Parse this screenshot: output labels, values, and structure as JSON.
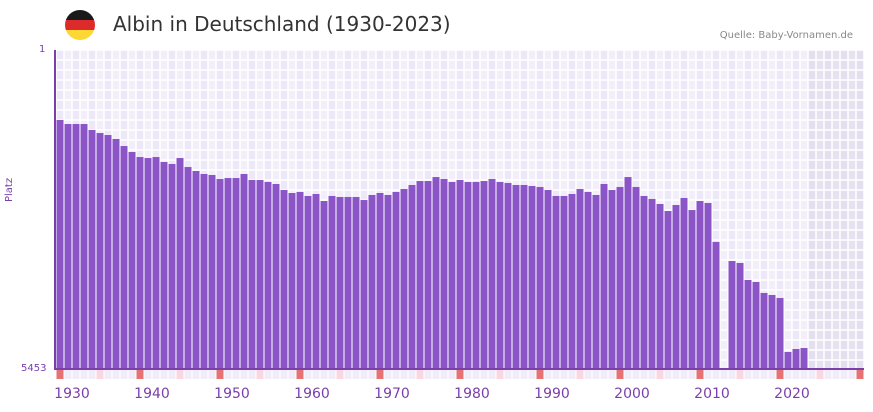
{
  "header": {
    "title": "Albin in Deutschland (1930-2023)",
    "source": "Quelle: Baby-Vornamen.de",
    "flag_colors": [
      "#1a1a1a",
      "#dd2a2a",
      "#fdd835"
    ]
  },
  "colors": {
    "bar": "#8b55c8",
    "axis": "#7a3fa8",
    "grid_bg_a": "#f2effb",
    "grid_bg_b": "#ece8f8",
    "future_bg": "#e3dfee",
    "decade_marker": "#e57373",
    "half_decade_marker": "#f8d7e0",
    "year_marker": "#f0edf8"
  },
  "chart_data": {
    "type": "bar",
    "title": "Albin in Deutschland (1930-2023)",
    "xlabel": "",
    "ylabel": "Platz",
    "y_axis_inverted": true,
    "ylim": [
      1,
      5453
    ],
    "y_ticks": [
      "1",
      "5453"
    ],
    "x_range": [
      1930,
      2030
    ],
    "x_ticks": [
      "1930",
      "1940",
      "1950",
      "1960",
      "1970",
      "1980",
      "1990",
      "2000",
      "2010",
      "2020"
    ],
    "future_shaded_from": 2024,
    "grid": true,
    "categories": [
      1930,
      1931,
      1932,
      1933,
      1934,
      1935,
      1936,
      1937,
      1938,
      1939,
      1940,
      1941,
      1942,
      1943,
      1944,
      1945,
      1946,
      1947,
      1948,
      1949,
      1950,
      1951,
      1952,
      1953,
      1954,
      1955,
      1956,
      1957,
      1958,
      1959,
      1960,
      1961,
      1962,
      1963,
      1964,
      1965,
      1966,
      1967,
      1968,
      1969,
      1970,
      1971,
      1972,
      1973,
      1974,
      1975,
      1976,
      1977,
      1978,
      1979,
      1980,
      1981,
      1982,
      1983,
      1984,
      1985,
      1986,
      1987,
      1988,
      1989,
      1990,
      1991,
      1992,
      1993,
      1994,
      1995,
      1996,
      1997,
      1998,
      1999,
      2000,
      2001,
      2002,
      2003,
      2004,
      2005,
      2006,
      2007,
      2008,
      2009,
      2010,
      2011,
      2012,
      2013,
      2014,
      2015,
      2016,
      2017,
      2018,
      2019,
      2020,
      2021,
      2022,
      2023
    ],
    "series": [
      {
        "name": "Platz",
        "values": [
          1197,
          1266,
          1266,
          1266,
          1368,
          1420,
          1454,
          1522,
          1642,
          1744,
          1830,
          1847,
          1830,
          1915,
          1949,
          1847,
          2001,
          2069,
          2120,
          2137,
          2206,
          2189,
          2189,
          2120,
          2223,
          2223,
          2257,
          2291,
          2394,
          2445,
          2428,
          2496,
          2462,
          2582,
          2496,
          2513,
          2513,
          2513,
          2565,
          2479,
          2445,
          2479,
          2428,
          2377,
          2308,
          2240,
          2240,
          2172,
          2206,
          2257,
          2223,
          2257,
          2257,
          2240,
          2206,
          2257,
          2274,
          2308,
          2308,
          2325,
          2342,
          2394,
          2496,
          2496,
          2462,
          2377,
          2428,
          2479,
          2291,
          2394,
          2342,
          2172,
          2342,
          2496,
          2547,
          2633,
          2753,
          2650,
          2530,
          2736,
          2582,
          2616,
          3282,
          null,
          3607,
          3641,
          3932,
          3966,
          4154,
          4188,
          4239,
          5162,
          5111,
          5094
        ]
      }
    ]
  }
}
